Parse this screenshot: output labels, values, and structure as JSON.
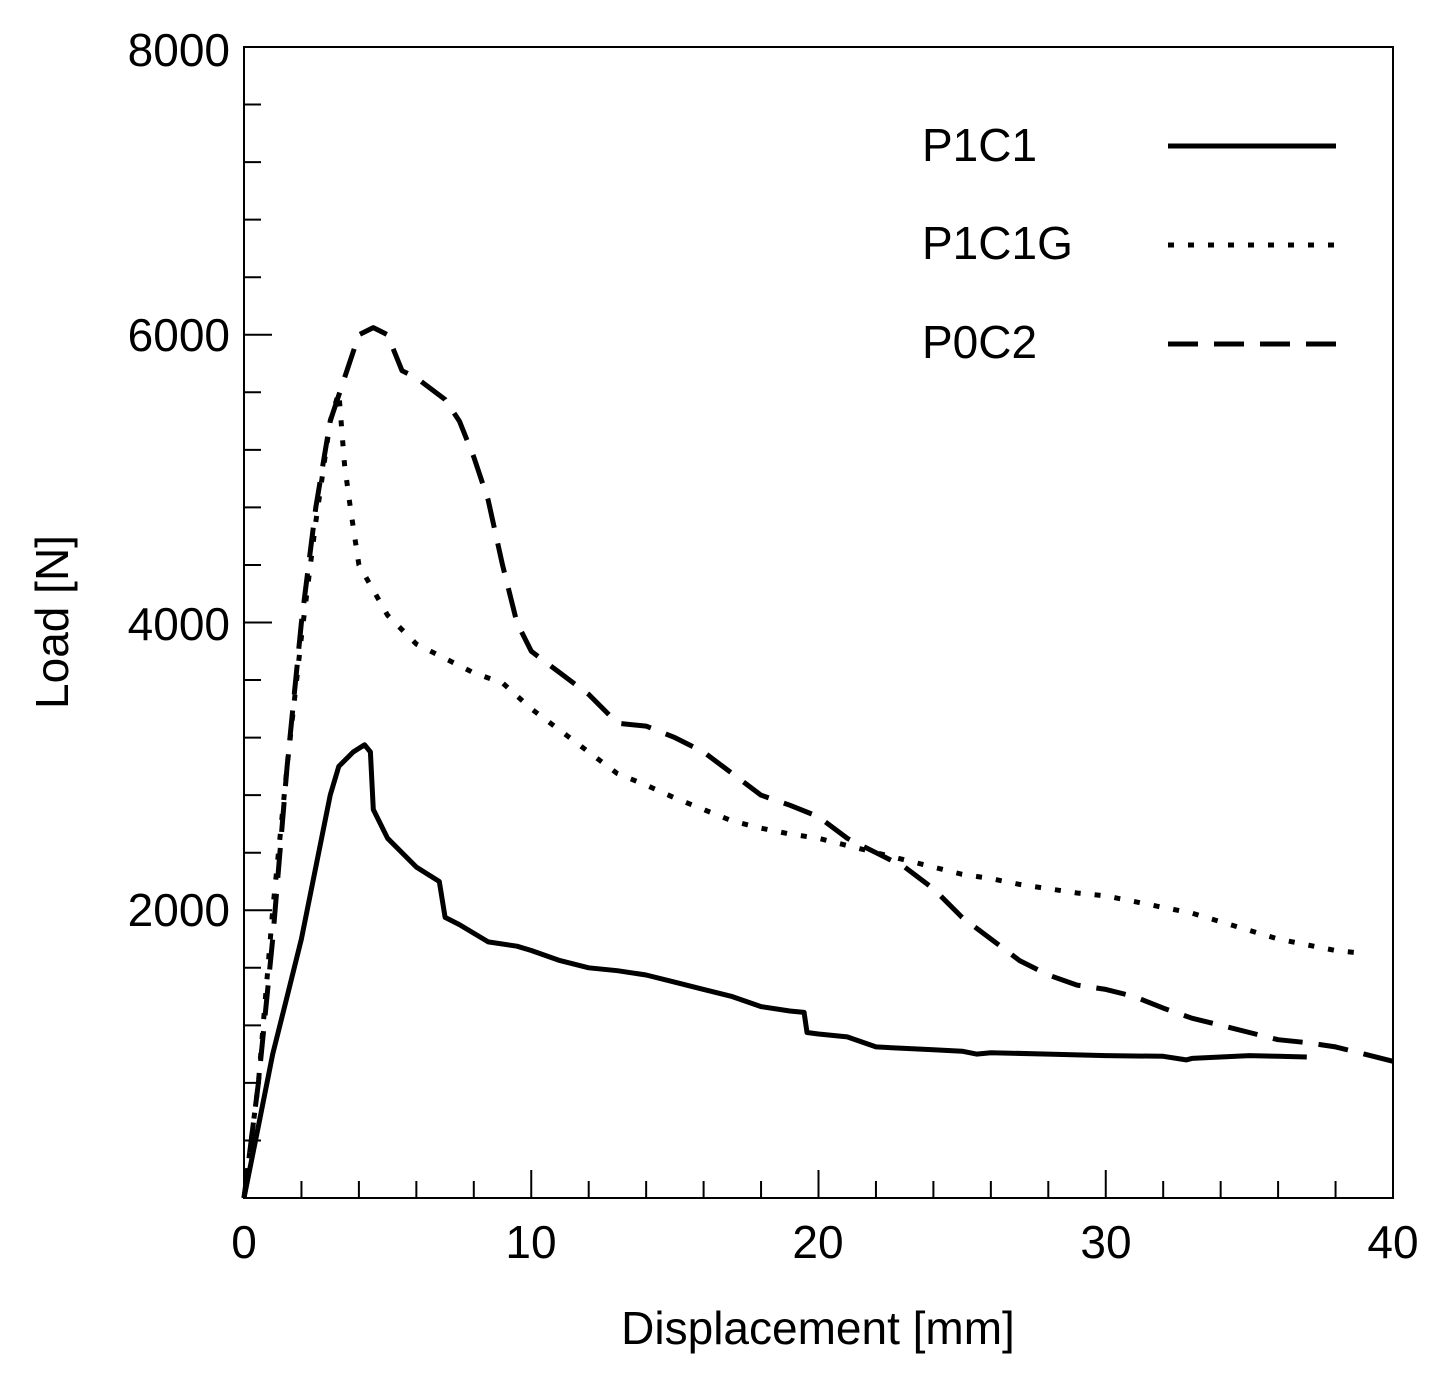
{
  "chart_data": {
    "type": "line",
    "title": "",
    "xlabel": "Displacement [mm]",
    "ylabel": "Load [N]",
    "xlim": [
      0,
      40
    ],
    "ylim": [
      0,
      8000
    ],
    "xticks": [
      0,
      10,
      20,
      30,
      40
    ],
    "xtick_labels": [
      "0",
      "10",
      "20",
      "30",
      "40"
    ],
    "yticks": [
      2000,
      4000,
      6000,
      8000
    ],
    "ytick_labels": [
      "2000",
      "4000",
      "6000",
      "8000"
    ],
    "grid": false,
    "legend_position": "top-right",
    "series": [
      {
        "name": "P1C1",
        "style": "solid",
        "x": [
          0,
          0.5,
          1,
          1.5,
          2,
          2.5,
          3,
          3.3,
          3.8,
          4.2,
          4.4,
          4.5,
          5,
          6,
          6.8,
          7,
          7.5,
          8.5,
          9.5,
          10,
          11,
          12,
          13,
          14,
          15,
          16,
          17,
          18,
          19,
          19.5,
          19.6,
          20,
          21,
          22,
          23,
          24,
          25,
          25.5,
          26,
          28,
          30,
          32,
          32.8,
          33,
          34,
          35,
          36,
          37
        ],
        "y": [
          0,
          500,
          1000,
          1400,
          1800,
          2300,
          2800,
          3000,
          3100,
          3150,
          3100,
          2700,
          2500,
          2300,
          2200,
          1950,
          1900,
          1780,
          1750,
          1720,
          1650,
          1600,
          1580,
          1550,
          1500,
          1450,
          1400,
          1330,
          1300,
          1290,
          1150,
          1140,
          1120,
          1050,
          1040,
          1030,
          1020,
          1000,
          1010,
          1000,
          990,
          985,
          960,
          970,
          980,
          990,
          985,
          980
        ]
      },
      {
        "name": "P1C1G",
        "style": "dotted",
        "x": [
          0,
          0.5,
          1,
          1.5,
          2,
          2.5,
          3,
          3.3,
          3.5,
          3.7,
          4,
          5,
          6,
          7,
          8,
          9,
          10,
          11,
          12,
          13,
          14,
          15,
          16,
          17,
          18,
          19,
          20,
          21,
          22,
          23,
          24,
          25,
          26,
          27,
          28,
          29,
          30,
          31,
          32,
          33,
          34,
          35,
          36,
          37,
          38,
          39
        ],
        "y": [
          0,
          800,
          2000,
          3000,
          3900,
          4700,
          5400,
          5600,
          5100,
          4800,
          4400,
          4050,
          3850,
          3750,
          3650,
          3580,
          3400,
          3250,
          3100,
          2950,
          2870,
          2780,
          2700,
          2620,
          2570,
          2530,
          2500,
          2450,
          2400,
          2350,
          2300,
          2250,
          2220,
          2180,
          2150,
          2120,
          2100,
          2060,
          2020,
          1980,
          1920,
          1860,
          1800,
          1760,
          1720,
          1700
        ]
      },
      {
        "name": "P0C2",
        "style": "dashed",
        "x": [
          0,
          0.5,
          1,
          1.5,
          2,
          2.5,
          3,
          3.5,
          4,
          4.5,
          5,
          5.5,
          6,
          7,
          7.5,
          8,
          8.5,
          9,
          9.5,
          10,
          11,
          12,
          13,
          14,
          15,
          16,
          17,
          18,
          19,
          20,
          21,
          22,
          23,
          24,
          25,
          26,
          27,
          28,
          29,
          30,
          31,
          32,
          33,
          34,
          35,
          36,
          37,
          38,
          39,
          40
        ],
        "y": [
          0,
          800,
          1800,
          3000,
          4000,
          4800,
          5400,
          5700,
          6000,
          6050,
          6000,
          5750,
          5700,
          5550,
          5400,
          5150,
          4850,
          4400,
          4000,
          3800,
          3650,
          3500,
          3300,
          3280,
          3200,
          3100,
          2950,
          2800,
          2730,
          2650,
          2500,
          2400,
          2300,
          2150,
          1950,
          1800,
          1650,
          1550,
          1480,
          1450,
          1400,
          1320,
          1250,
          1200,
          1150,
          1100,
          1080,
          1050,
          1000,
          950
        ]
      }
    ]
  }
}
